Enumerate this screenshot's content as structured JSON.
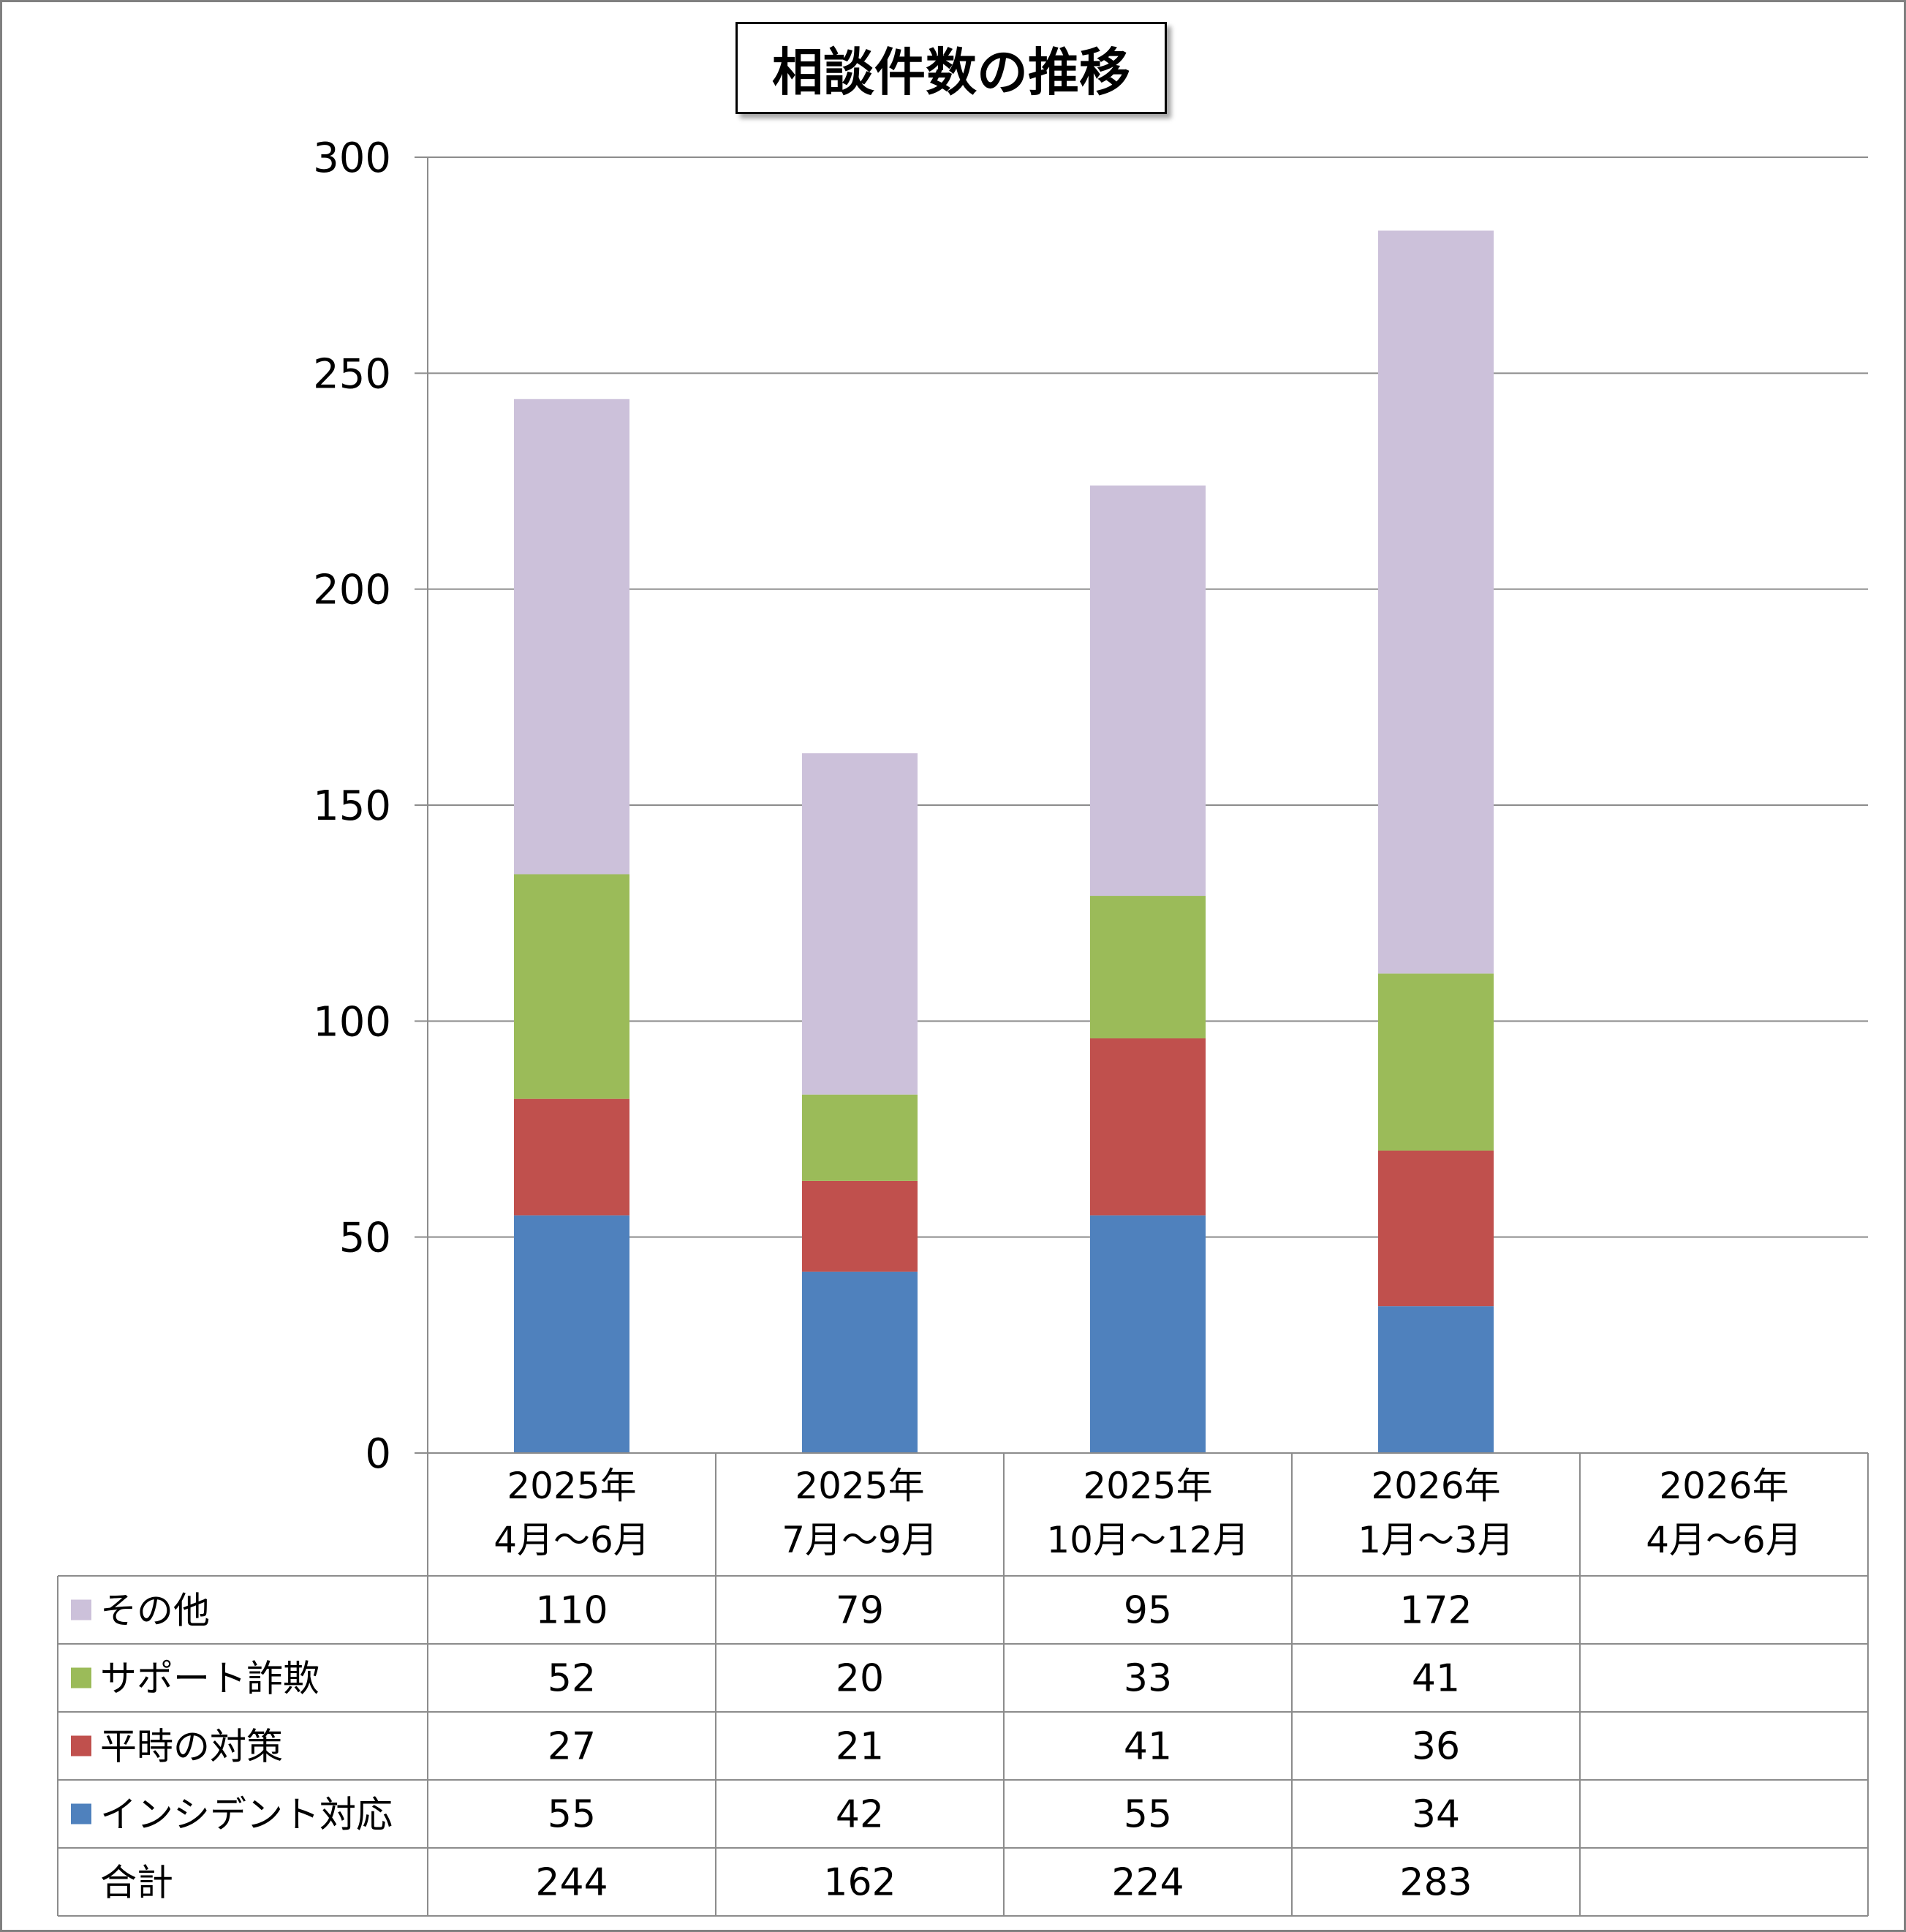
{
  "chart_data": {
    "type": "bar",
    "stacked": true,
    "title": "相談件数の推移",
    "xlabel": "",
    "ylabel": "",
    "ylim": [
      0,
      300
    ],
    "yticks": [
      0,
      50,
      100,
      150,
      200,
      250,
      300
    ],
    "grid": true,
    "legend": "data-table",
    "categories": [
      [
        "2025年",
        "4月～6月"
      ],
      [
        "2025年",
        "7月～9月"
      ],
      [
        "2025年",
        "10月～12月"
      ],
      [
        "2026年",
        "1月～3月"
      ],
      [
        "2026年",
        "4月～6月"
      ]
    ],
    "series": [
      {
        "name": "インシデント対応",
        "color": "#4f81bd",
        "values": [
          55,
          42,
          55,
          34,
          null
        ]
      },
      {
        "name": "平時の対策",
        "color": "#c0504d",
        "values": [
          27,
          21,
          41,
          36,
          null
        ]
      },
      {
        "name": "サポート詐欺",
        "color": "#9bbb59",
        "values": [
          52,
          20,
          33,
          41,
          null
        ]
      },
      {
        "name": "その他",
        "color": "#ccc1da",
        "values": [
          110,
          79,
          95,
          172,
          null
        ]
      }
    ],
    "table_rows": [
      "その他",
      "サポート詐欺",
      "平時の対策",
      "インシデント対応",
      "合計"
    ],
    "totals": {
      "label": "合計",
      "values": [
        244,
        162,
        224,
        283,
        null
      ]
    }
  }
}
